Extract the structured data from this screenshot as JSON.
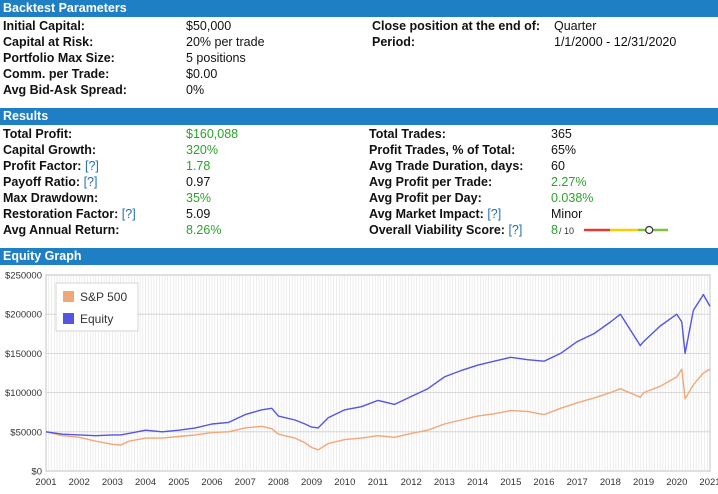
{
  "sections": {
    "params_title": "Backtest Parameters",
    "results_title": "Results",
    "graph_title": "Equity Graph"
  },
  "params": {
    "left": [
      {
        "label": "Initial Capital:",
        "value": "$50,000"
      },
      {
        "label": "Capital at Risk:",
        "value": "20% per trade"
      },
      {
        "label": "Portfolio Max Size:",
        "value": "5 positions"
      },
      {
        "label": "Comm. per Trade:",
        "value": "$0.00"
      },
      {
        "label": "Avg Bid-Ask Spread:",
        "value": "0%"
      }
    ],
    "right": [
      {
        "label": "Close position at the end of:",
        "value": "Quarter"
      },
      {
        "label": "Period:",
        "value": "1/1/2000 - 12/31/2020"
      }
    ]
  },
  "results": {
    "left": [
      {
        "label": "Total Profit:",
        "help": "",
        "value": "$160,088",
        "green": true
      },
      {
        "label": "Capital Growth:",
        "help": "",
        "value": "320%",
        "green": true
      },
      {
        "label": "Profit Factor:",
        "help": "[?]",
        "value": "1.78",
        "green": true
      },
      {
        "label": "Payoff Ratio:",
        "help": "[?]",
        "value": "0.97",
        "green": false
      },
      {
        "label": "Max Drawdown:",
        "help": "",
        "value": "35%",
        "green": true
      },
      {
        "label": "Restoration Factor:",
        "help": "[?]",
        "value": "5.09",
        "green": false
      },
      {
        "label": "Avg Annual Return:",
        "help": "",
        "value": "8.26%",
        "green": true
      }
    ],
    "right": [
      {
        "label": "Total Trades:",
        "help": "",
        "value": "365",
        "green": false
      },
      {
        "label": "Profit Trades, % of Total:",
        "help": "",
        "value": "65%",
        "green": false
      },
      {
        "label": "Avg Trade Duration, days:",
        "help": "",
        "value": "60",
        "green": false
      },
      {
        "label": "Avg Profit per Trade:",
        "help": "",
        "value": "2.27%",
        "green": true
      },
      {
        "label": "Avg Profit per Day:",
        "help": "",
        "value": "0.038%",
        "green": true
      },
      {
        "label": "Avg Market Impact:",
        "help": "[?]",
        "value": "Minor",
        "green": false
      },
      {
        "label": "Overall Viability Score:",
        "help": "[?]",
        "value": "8",
        "green": true
      }
    ],
    "viability": {
      "score": 8,
      "max_label": "/ 10",
      "colors": [
        "#e53935",
        "#f5d000",
        "#7cc242"
      ]
    }
  },
  "chart_data": {
    "type": "line",
    "title": "",
    "xlabel": "",
    "ylabel": "",
    "x_ticks": [
      "2001",
      "2002",
      "2003",
      "2004",
      "2005",
      "2006",
      "2007",
      "2008",
      "2009",
      "2010",
      "2011",
      "2012",
      "2013",
      "2014",
      "2015",
      "2016",
      "2017",
      "2018",
      "2019",
      "2020",
      "2021"
    ],
    "y_ticks": [
      "$0",
      "$50000",
      "$100000",
      "$150000",
      "$200000",
      "$250000"
    ],
    "xlim": [
      2001,
      2021
    ],
    "ylim": [
      0,
      250000
    ],
    "grid": true,
    "legend_position": "top-left",
    "x": [
      2001.0,
      2001.5,
      2002.0,
      2002.5,
      2003.0,
      2003.25,
      2003.5,
      2004.0,
      2004.5,
      2005.0,
      2005.5,
      2006.0,
      2006.5,
      2007.0,
      2007.5,
      2007.8,
      2008.0,
      2008.5,
      2008.8,
      2009.0,
      2009.2,
      2009.5,
      2010.0,
      2010.5,
      2011.0,
      2011.5,
      2012.0,
      2012.5,
      2013.0,
      2013.5,
      2014.0,
      2014.5,
      2015.0,
      2015.5,
      2016.0,
      2016.5,
      2017.0,
      2017.5,
      2018.0,
      2018.3,
      2018.9,
      2019.0,
      2019.5,
      2020.0,
      2020.15,
      2020.25,
      2020.5,
      2020.8,
      2021.0
    ],
    "series": [
      {
        "name": "S&P 500",
        "color": "#f0a878",
        "values": [
          50000,
          45000,
          43000,
          38000,
          34000,
          33000,
          38000,
          42000,
          42000,
          44000,
          46000,
          49000,
          50000,
          55000,
          57000,
          54000,
          47000,
          42000,
          36000,
          30000,
          27000,
          35000,
          40000,
          42000,
          45000,
          43000,
          48000,
          52000,
          60000,
          65000,
          70000,
          73000,
          77000,
          76000,
          72000,
          80000,
          87000,
          93000,
          100000,
          105000,
          94000,
          100000,
          108000,
          120000,
          130000,
          92000,
          110000,
          125000,
          130000
        ]
      },
      {
        "name": "Equity",
        "color": "#5555e0",
        "values": [
          50000,
          47000,
          46000,
          45000,
          46000,
          46000,
          48000,
          52000,
          50000,
          52000,
          55000,
          60000,
          62000,
          72000,
          78000,
          80000,
          70000,
          65000,
          60000,
          56000,
          55000,
          68000,
          78000,
          82000,
          90000,
          85000,
          95000,
          105000,
          120000,
          128000,
          135000,
          140000,
          145000,
          142000,
          140000,
          150000,
          165000,
          175000,
          190000,
          200000,
          160000,
          165000,
          185000,
          200000,
          190000,
          150000,
          205000,
          225000,
          210000
        ]
      }
    ]
  }
}
